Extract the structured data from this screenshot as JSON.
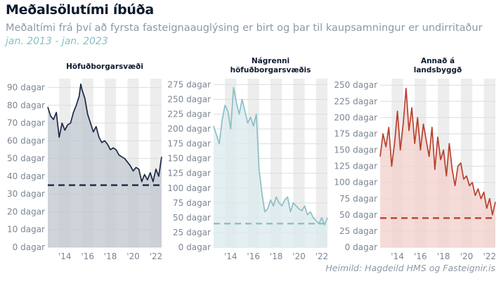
{
  "header": {
    "title": "Meðalsölutími íbúða",
    "subtitle": "Meðaltími frá því að fyrsta fasteignaauglýsing er birt og þar til kaupsamningur er undirritaður",
    "period": "jan. 2013 - jan. 2023"
  },
  "source": "Heimild: Hagdeild HMS og Fasteignir.is",
  "chart_data": [
    {
      "type": "area",
      "title": [
        "Höfuðborgarsvæði"
      ],
      "color": "#1b2a44",
      "fill": "#bfc5cf",
      "ylim": [
        0,
        95
      ],
      "yticks": [
        0,
        10,
        20,
        30,
        40,
        50,
        60,
        70,
        80,
        90
      ],
      "ytick_labels": [
        "0 dagar",
        "10 dagar",
        "20 dagar",
        "30 dagar",
        "40 dagar",
        "50 dagar",
        "60 dagar",
        "70 dagar",
        "80 dagar",
        "90 dagar"
      ],
      "xlim": [
        2013.0,
        2023.0
      ],
      "xtick_labels": [
        "'14",
        "'16",
        "'18",
        "'20",
        "'22"
      ],
      "average": 35,
      "x": [
        2013.0,
        2013.25,
        2013.5,
        2013.75,
        2014.0,
        2014.25,
        2014.5,
        2014.75,
        2015.0,
        2015.25,
        2015.5,
        2015.75,
        2015.9,
        2016.0,
        2016.25,
        2016.5,
        2016.75,
        2017.0,
        2017.25,
        2017.5,
        2017.75,
        2018.0,
        2018.25,
        2018.5,
        2018.75,
        2019.0,
        2019.25,
        2019.5,
        2019.75,
        2020.0,
        2020.25,
        2020.5,
        2020.75,
        2021.0,
        2021.25,
        2021.5,
        2021.75,
        2022.0,
        2022.25,
        2022.5,
        2022.75,
        2023.0
      ],
      "values": [
        79,
        74,
        72,
        76,
        62,
        70,
        66,
        69,
        70,
        76,
        80,
        85,
        92,
        89,
        84,
        75,
        70,
        65,
        68,
        62,
        59,
        60,
        58,
        55,
        56,
        55,
        52,
        51,
        50,
        48,
        46,
        43,
        45,
        44,
        37,
        41,
        38,
        42,
        37,
        44,
        40,
        51
      ]
    },
    {
      "type": "area",
      "title": [
        "Nágrenni",
        "höfuðborgarsvæðis"
      ],
      "color": "#8bbfc6",
      "fill": "#dbe9ec",
      "ylim": [
        0,
        285
      ],
      "yticks": [
        0,
        25,
        50,
        75,
        100,
        125,
        150,
        175,
        200,
        225,
        250,
        275
      ],
      "ytick_labels": [
        "0 dagar",
        "25 dagar",
        "50 dagar",
        "75 dagar",
        "100 dagar",
        "125 dagar",
        "150 dagar",
        "175 dagar",
        "200 dagar",
        "225 dagar",
        "250 dagar",
        "275 dagar"
      ],
      "xlim": [
        2013.0,
        2023.0
      ],
      "xtick_labels": [
        "'14",
        "'16",
        "'18",
        "'20",
        "'22"
      ],
      "average": 40,
      "x": [
        2013.0,
        2013.25,
        2013.5,
        2013.75,
        2014.0,
        2014.25,
        2014.5,
        2014.75,
        2015.0,
        2015.25,
        2015.5,
        2015.75,
        2016.0,
        2016.25,
        2016.5,
        2016.75,
        2017.0,
        2017.25,
        2017.5,
        2017.75,
        2018.0,
        2018.25,
        2018.5,
        2018.75,
        2019.0,
        2019.25,
        2019.5,
        2019.75,
        2020.0,
        2020.25,
        2020.5,
        2020.75,
        2021.0,
        2021.25,
        2021.5,
        2021.75,
        2022.0,
        2022.25,
        2022.5,
        2022.75,
        2023.0
      ],
      "values": [
        205,
        190,
        175,
        215,
        240,
        230,
        200,
        270,
        245,
        225,
        250,
        230,
        210,
        220,
        205,
        225,
        130,
        90,
        60,
        65,
        80,
        70,
        85,
        75,
        70,
        80,
        85,
        60,
        75,
        70,
        65,
        62,
        70,
        55,
        60,
        50,
        45,
        40,
        50,
        38,
        50
      ]
    },
    {
      "type": "area",
      "title": [
        "Annað á",
        "landsbyggð"
      ],
      "color": "#b8412f",
      "fill": "#f2d0cb",
      "ylim": [
        0,
        260
      ],
      "yticks": [
        0,
        25,
        50,
        75,
        100,
        125,
        150,
        175,
        200,
        225,
        250
      ],
      "ytick_labels": [
        "0 dagar",
        "25 dagar",
        "50 dagar",
        "75 dagar",
        "100 dagar",
        "125 dagar",
        "150 dagar",
        "175 dagar",
        "200 dagar",
        "225 dagar",
        "250 dagar"
      ],
      "xlim": [
        2013.0,
        2023.0
      ],
      "xtick_labels": [
        "'14",
        "'16",
        "'18",
        "'20",
        "'22"
      ],
      "average": 45,
      "x": [
        2013.0,
        2013.25,
        2013.5,
        2013.75,
        2014.0,
        2014.25,
        2014.5,
        2014.75,
        2015.0,
        2015.25,
        2015.5,
        2015.75,
        2016.0,
        2016.25,
        2016.5,
        2016.75,
        2017.0,
        2017.25,
        2017.5,
        2017.75,
        2018.0,
        2018.25,
        2018.5,
        2018.75,
        2019.0,
        2019.25,
        2019.5,
        2019.75,
        2020.0,
        2020.25,
        2020.5,
        2020.75,
        2021.0,
        2021.25,
        2021.5,
        2021.75,
        2022.0,
        2022.25,
        2022.5,
        2022.75,
        2023.0
      ],
      "values": [
        140,
        175,
        155,
        185,
        125,
        160,
        210,
        150,
        190,
        245,
        180,
        215,
        160,
        200,
        150,
        190,
        165,
        140,
        185,
        120,
        170,
        135,
        150,
        110,
        160,
        120,
        95,
        125,
        130,
        105,
        110,
        95,
        100,
        80,
        90,
        75,
        85,
        60,
        75,
        50,
        70
      ]
    }
  ]
}
